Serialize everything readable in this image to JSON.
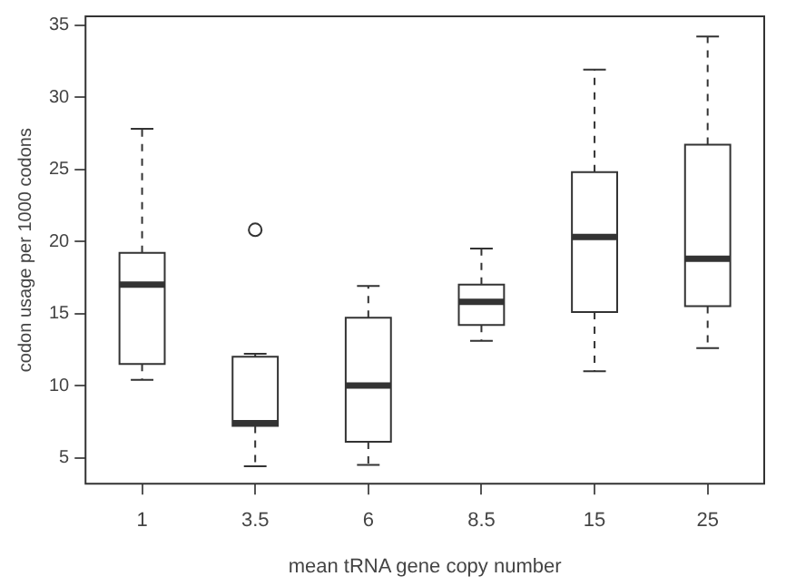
{
  "chart_data": {
    "type": "box",
    "xlabel": "mean tRNA gene copy number",
    "ylabel": "codon usage per 1000 codons",
    "categories": [
      "1",
      "3.5",
      "6",
      "8.5",
      "15",
      "25"
    ],
    "boxes": [
      {
        "low": 10.4,
        "q1": 11.5,
        "median": 17.0,
        "q3": 19.2,
        "high": 27.8
      },
      {
        "low": 4.4,
        "q1": 7.2,
        "median": 7.4,
        "q3": 12.0,
        "high": 12.2,
        "outliers": [
          20.8
        ]
      },
      {
        "low": 4.5,
        "q1": 6.1,
        "median": 10.0,
        "q3": 14.7,
        "high": 16.9
      },
      {
        "low": 13.1,
        "q1": 14.2,
        "median": 15.8,
        "q3": 17.0,
        "high": 19.5
      },
      {
        "low": 11.0,
        "q1": 15.1,
        "median": 20.3,
        "q3": 24.8,
        "high": 31.9
      },
      {
        "low": 12.6,
        "q1": 15.5,
        "median": 18.8,
        "q3": 26.7,
        "high": 34.2
      }
    ],
    "color": "#333333",
    "ylim": [
      3.2,
      35.6
    ],
    "yticks": [
      5,
      10,
      15,
      20,
      25,
      30,
      35
    ],
    "grid": false,
    "legend": false
  }
}
